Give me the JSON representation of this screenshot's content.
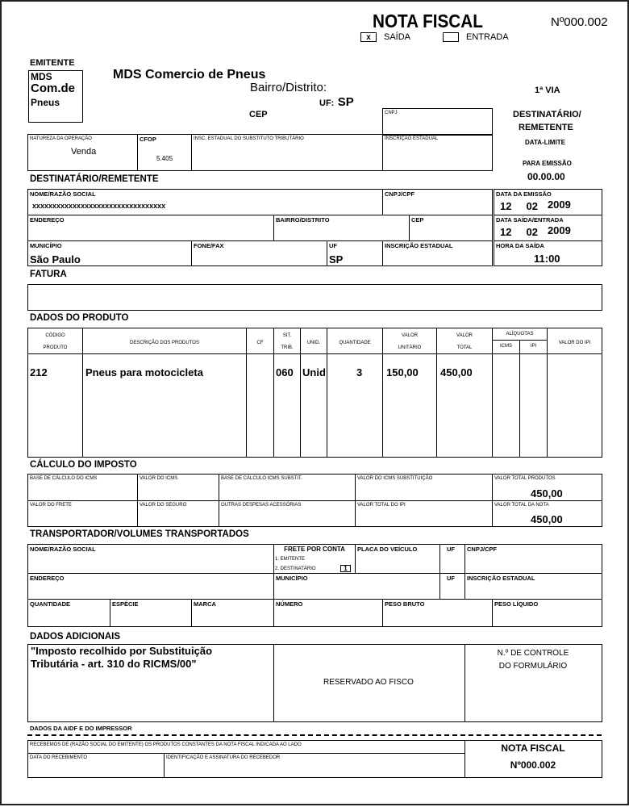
{
  "header": {
    "title": "NOTA FISCAL",
    "number": "Nº000.002",
    "saida_mark": "x",
    "saida": "SAÍDA",
    "entrada": "ENTRADA"
  },
  "emitente": {
    "section": "EMITENTE",
    "logo": [
      "MDS",
      "Com.de",
      "Pneus"
    ],
    "name": "MDS Comercio de Pneus",
    "bairro": "Bairro/Distrito:",
    "uf_label": "UF:",
    "uf": "SP",
    "cep": "CEP",
    "cnpj": "CNPJ",
    "natureza_label": "NATUREZA DA OPERAÇÃO",
    "natureza": "Venda",
    "cfop_label": "CFOP",
    "cfop": "5.405",
    "insc_subst": "INSC. ESTADUAL DO SUBSTITUTO TRIBUTÁRIO",
    "insc_estadual": "INSCRIÇÃO ESTADUAL"
  },
  "side": {
    "via": "1ª VIA",
    "dest1": "DESTINATÁRIO/",
    "dest2": "REMETENTE",
    "data_limite": "DATA-LIMITE",
    "para_emissao": "PARA EMISSÃO",
    "date": "00.00.00"
  },
  "destinatario": {
    "section": "DESTINATÁRIO/REMETENTE",
    "nome_label": "NOME/RAZÃO SOCIAL",
    "nome": "xxxxxxxxxxxxxxxxxxxxxxxxxxxxxxxxx",
    "cnpj_label": "CNPJ/CPF",
    "data_emissao_label": "DATA DA EMISSÃO",
    "data_emissao": {
      "day": "12",
      "month": "02",
      "year": "2009"
    },
    "endereco_label": "ENDEREÇO",
    "bairro_label": "BAIRRO/DISTRITO",
    "cep_label": "CEP",
    "data_saida_label": "DATA SAÍDA/ENTRADA",
    "data_saida": {
      "day": "12",
      "month": "02",
      "year": "2009"
    },
    "municipio_label": "MUNICÍPIO",
    "municipio": "São Paulo",
    "fone_label": "FONE/FAX",
    "uf_label": "UF",
    "uf": "SP",
    "insc_label": "INSCRIÇÃO ESTADUAL",
    "hora_label": "HORA DA SAÍDA",
    "hora": "11:00"
  },
  "fatura": {
    "section": "FATURA"
  },
  "produto": {
    "section": "DADOS DO PRODUTO",
    "headers": {
      "codigo1": "CÓDIGO",
      "codigo2": "PRODUTO",
      "descricao": "DESCRIÇÃO DOS PRODUTOS",
      "cf": "CF",
      "sit1": "SIT.",
      "sit2": "TRIB.",
      "unid": "UNID.",
      "quantidade": "QUANTIDADE",
      "vunit1": "VALOR",
      "vunit2": "UNITÁRIO",
      "vtotal1": "VALOR",
      "vtotal2": "TOTAL",
      "aliquotas": "ALÍQUOTAS",
      "icms": "ICMS",
      "ipi": "IPI",
      "valor_ipi": "VALOR DO IPI"
    },
    "rows": [
      {
        "codigo": "212",
        "descricao": "Pneus para motocicleta",
        "sit": "060",
        "unid": "Unid",
        "quantidade": "3",
        "valor_unitario": "150,00",
        "valor_total": "450,00"
      }
    ]
  },
  "imposto": {
    "section": "CÁLCULO DO IMPOSTO",
    "base_icms": "BASE DE CÁLCULO DO ICMS",
    "valor_icms": "VALOR DO ICMS",
    "base_subst": "BASE DE CÁLCULO ICMS SUBSTIT.",
    "valor_subst": "VALOR DO ICMS SUBSTITUIÇÃO",
    "total_produtos_label": "VALOR TOTAL PRODUTOS",
    "total_produtos": "450,00",
    "frete": "VALOR DO FRETE",
    "seguro": "VALOR DO SEGURO",
    "outras": "OUTRAS DESPESAS ACESSÓRIAS",
    "total_ipi": "VALOR TOTAL DO IPI",
    "total_nota_label": "VALOR TOTAL DA NOTA",
    "total_nota": "450,00"
  },
  "transportador": {
    "section": "TRANSPORTADOR/VOLUMES TRANSPORTADOS",
    "nome": "NOME/RAZÃO SOCIAL",
    "frete": "FRETE POR CONTA",
    "emitente": "1. EMITENTE",
    "destinatario": "2. DESTINATÁRIO",
    "frete_value": "1",
    "placa": "PLACA DO VEÍCULO",
    "uf": "UF",
    "cnpj": "CNPJ/CPF",
    "endereco": "ENDEREÇO",
    "municipio": "MUNICÍPIO",
    "insc": "INSCRIÇÃO ESTADUAL",
    "quantidade": "QUANTIDADE",
    "especie": "ESPÉCIE",
    "marca": "MARCA",
    "numero": "NÚMERO",
    "peso_bruto": "PESO BRUTO",
    "peso_liquido": "PESO LÍQUIDO"
  },
  "adicionais": {
    "section": "DADOS ADICIONAIS",
    "text1": "\"Imposto recolhido por Substituição",
    "text2": "Tributária - art. 310 do RICMS/00\"",
    "fisco": "RESERVADO AO FISCO",
    "controle1": "N.º DE CONTROLE",
    "controle2": "DO FORMULÁRIO"
  },
  "aidf": {
    "label": "DADOS DA AIDF E DO IMPRESSOR"
  },
  "canhoto": {
    "recebemos": "RECEBEMOS DE (RAZÃO SOCIAL DO EMITENTE) OS PRODUTOS CONSTANTES DA NOTA FISCAL INDICADA AO LADO",
    "data": "DATA DO RECEBIMENTO",
    "assinatura": "IDENTIFICAÇÃO E ASSINATURA DO RECEBEDOR",
    "title": "NOTA FISCAL",
    "number": "Nº000.002"
  }
}
